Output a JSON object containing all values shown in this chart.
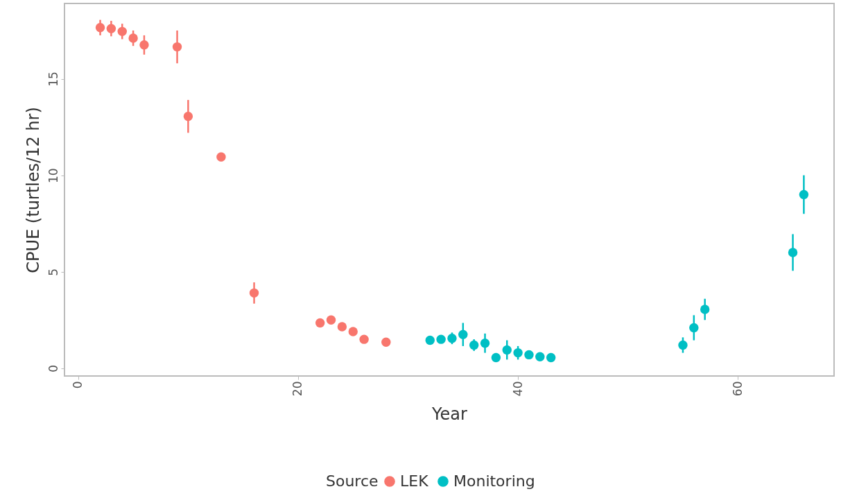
{
  "chart_data": {
    "type": "scatter",
    "xlabel": "Year",
    "ylabel": "CPUE (turtles/12 hr)",
    "legend_title": "Source",
    "legend": "bottom",
    "marker": "circle",
    "xlim": [
      -1.25,
      68.75
    ],
    "ylim": [
      -0.4,
      18.9
    ],
    "xticks": [
      0,
      20,
      40,
      60
    ],
    "yticks": [
      0,
      5,
      10,
      15
    ],
    "series": [
      {
        "name": "LEK",
        "color": "#f8766d",
        "x": [
          2,
          3,
          4,
          5,
          6,
          9,
          10,
          13,
          16,
          22,
          23,
          24,
          25,
          26,
          28
        ],
        "values": [
          17.65,
          17.6,
          17.45,
          17.1,
          16.75,
          16.65,
          13.05,
          10.95,
          3.9,
          2.35,
          2.5,
          2.15,
          1.9,
          1.5,
          1.35
        ],
        "errors": [
          0.4,
          0.4,
          0.4,
          0.4,
          0.5,
          0.85,
          0.85,
          0.2,
          0.55,
          0.2,
          0.2,
          null,
          null,
          null,
          null
        ]
      },
      {
        "name": "Monitoring",
        "color": "#00bfc4",
        "x": [
          32,
          33,
          34,
          35,
          36,
          37,
          38,
          39,
          40,
          41,
          42,
          43,
          55,
          56,
          57,
          65,
          66
        ],
        "values": [
          1.45,
          1.5,
          1.55,
          1.75,
          1.2,
          1.3,
          0.55,
          0.95,
          0.8,
          0.7,
          0.6,
          0.55,
          1.2,
          2.1,
          3.05,
          6.0,
          9.0
        ],
        "errors": [
          null,
          0.2,
          0.3,
          0.6,
          0.3,
          0.5,
          null,
          0.5,
          0.35,
          null,
          null,
          null,
          0.4,
          0.65,
          0.55,
          0.95,
          1.0
        ]
      }
    ]
  }
}
